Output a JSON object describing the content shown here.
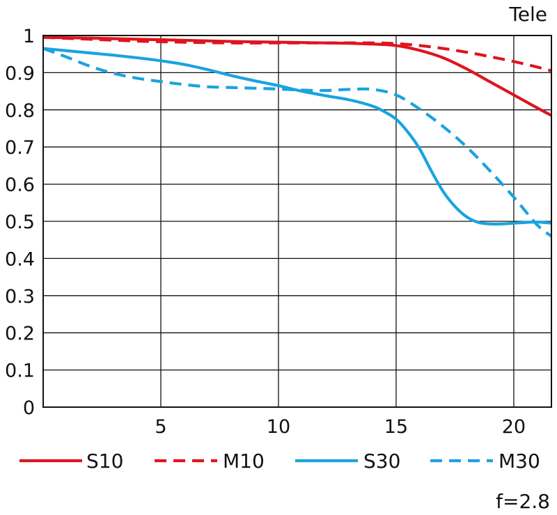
{
  "chart_data": {
    "type": "line",
    "title": "Tele",
    "footnote": "f=2.8",
    "xlim": [
      0,
      21.6
    ],
    "ylim": [
      0,
      1
    ],
    "x_ticks": [
      5,
      10,
      15,
      20
    ],
    "y_ticks": [
      0,
      0.1,
      0.2,
      0.3,
      0.4,
      0.5,
      0.6,
      0.7,
      0.8,
      0.9,
      1
    ],
    "grid": true,
    "legend_position": "bottom",
    "series": [
      {
        "name": "S10",
        "color": "#e0141e",
        "style": "solid",
        "x": [
          0,
          2,
          4,
          6,
          8,
          10,
          12,
          13,
          14,
          15,
          16,
          17,
          18,
          19,
          20,
          21,
          21.6
        ],
        "y": [
          0.995,
          0.993,
          0.99,
          0.987,
          0.984,
          0.982,
          0.98,
          0.979,
          0.977,
          0.973,
          0.96,
          0.94,
          0.91,
          0.875,
          0.84,
          0.805,
          0.785
        ]
      },
      {
        "name": "M10",
        "color": "#e0141e",
        "style": "dashed",
        "x": [
          0,
          2,
          4,
          6,
          8,
          10,
          12,
          14,
          15,
          16,
          17,
          18,
          19,
          20,
          21,
          21.6
        ],
        "y": [
          0.995,
          0.99,
          0.985,
          0.982,
          0.98,
          0.98,
          0.98,
          0.98,
          0.978,
          0.973,
          0.965,
          0.955,
          0.943,
          0.93,
          0.915,
          0.905
        ]
      },
      {
        "name": "S30",
        "color": "#1aa3e0",
        "style": "solid",
        "x": [
          0,
          1,
          2,
          3,
          4,
          5,
          6,
          7,
          8,
          9,
          10,
          11,
          12,
          13,
          14,
          14.5,
          15,
          15.5,
          16,
          16.5,
          17,
          17.5,
          18,
          18.5,
          19,
          19.5,
          20,
          20.5,
          21,
          21.6
        ],
        "y": [
          0.965,
          0.959,
          0.953,
          0.947,
          0.94,
          0.932,
          0.922,
          0.908,
          0.892,
          0.878,
          0.865,
          0.85,
          0.838,
          0.827,
          0.81,
          0.795,
          0.775,
          0.74,
          0.695,
          0.635,
          0.58,
          0.54,
          0.512,
          0.497,
          0.493,
          0.493,
          0.495,
          0.497,
          0.498,
          0.495
        ]
      },
      {
        "name": "M30",
        "color": "#1aa3e0",
        "style": "dashed",
        "x": [
          0,
          1,
          2,
          3,
          4,
          5,
          6,
          7,
          8,
          9,
          10,
          11,
          12,
          13,
          14,
          15,
          16,
          17,
          18,
          19,
          20,
          21,
          21.6
        ],
        "y": [
          0.965,
          0.942,
          0.917,
          0.898,
          0.885,
          0.876,
          0.868,
          0.862,
          0.86,
          0.858,
          0.856,
          0.853,
          0.852,
          0.855,
          0.855,
          0.84,
          0.802,
          0.755,
          0.7,
          0.635,
          0.565,
          0.49,
          0.46
        ]
      }
    ]
  }
}
